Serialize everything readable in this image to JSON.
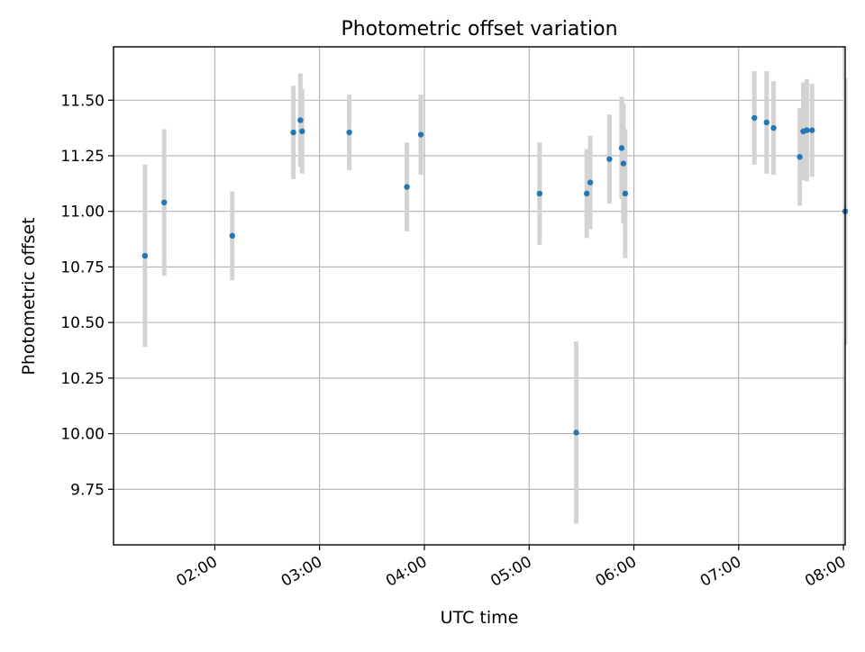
{
  "chart_data": {
    "type": "scatter",
    "title": "Photometric offset variation",
    "xlabel": "UTC time",
    "ylabel": "Photometric offset",
    "x_ticks": [
      "02:00",
      "03:00",
      "04:00",
      "05:00",
      "06:00",
      "07:00",
      "08:00"
    ],
    "y_ticks": [
      "9.75",
      "10.00",
      "10.25",
      "10.50",
      "10.75",
      "11.00",
      "11.25",
      "11.50"
    ],
    "xlim": [
      "01:02",
      "08:01"
    ],
    "ylim": [
      9.5,
      11.74
    ],
    "grid": true,
    "point_color": "#1f77b4",
    "errorbar_color": "#d3d3d3",
    "points": [
      {
        "x": "01:20",
        "y": 10.8,
        "err": 0.41
      },
      {
        "x": "01:31",
        "y": 11.04,
        "err": 0.33
      },
      {
        "x": "02:10",
        "y": 10.89,
        "err": 0.2
      },
      {
        "x": "02:45",
        "y": 11.355,
        "err": 0.21
      },
      {
        "x": "02:49",
        "y": 11.41,
        "err": 0.21
      },
      {
        "x": "02:50",
        "y": 11.36,
        "err": 0.19
      },
      {
        "x": "03:17",
        "y": 11.355,
        "err": 0.17
      },
      {
        "x": "03:50",
        "y": 11.11,
        "err": 0.2
      },
      {
        "x": "03:58",
        "y": 11.345,
        "err": 0.18
      },
      {
        "x": "05:06",
        "y": 11.08,
        "err": 0.23
      },
      {
        "x": "05:27",
        "y": 10.005,
        "err": 0.41
      },
      {
        "x": "05:33",
        "y": 11.08,
        "err": 0.2
      },
      {
        "x": "05:35",
        "y": 11.13,
        "err": 0.21
      },
      {
        "x": "05:46",
        "y": 11.235,
        "err": 0.2
      },
      {
        "x": "05:53",
        "y": 11.285,
        "err": 0.23
      },
      {
        "x": "05:54",
        "y": 11.215,
        "err": 0.27
      },
      {
        "x": "05:55",
        "y": 11.08,
        "err": 0.29
      },
      {
        "x": "07:09",
        "y": 11.42,
        "err": 0.21
      },
      {
        "x": "07:16",
        "y": 11.4,
        "err": 0.23
      },
      {
        "x": "07:20",
        "y": 11.375,
        "err": 0.21
      },
      {
        "x": "07:35",
        "y": 11.245,
        "err": 0.22
      },
      {
        "x": "07:37",
        "y": 11.36,
        "err": 0.22
      },
      {
        "x": "07:39",
        "y": 11.365,
        "err": 0.23
      },
      {
        "x": "07:42",
        "y": 11.365,
        "err": 0.21
      },
      {
        "x": "08:01",
        "y": 11.0,
        "err": 0.6
      }
    ]
  }
}
